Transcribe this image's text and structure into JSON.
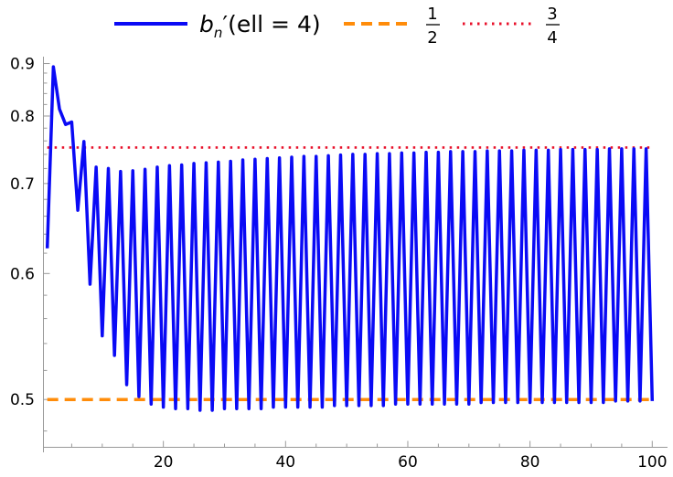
{
  "chart_data": {
    "type": "line",
    "title": "",
    "xlabel": "",
    "ylabel": "",
    "xlim": [
      0.3,
      102.5
    ],
    "ylim": [
      0.47,
      0.915
    ],
    "y_scale": "reciprocal",
    "grid": false,
    "legend_position": "top",
    "x_ticks": [
      20,
      40,
      60,
      80,
      100
    ],
    "y_ticks": [
      0.5,
      0.6,
      0.7,
      0.8,
      0.9
    ],
    "series": [
      {
        "name": "b_n′(ell = 4)",
        "style": "solid",
        "color": "#0a0af5",
        "x": [
          1,
          2,
          3,
          4,
          5,
          6,
          7,
          8,
          9,
          10,
          11,
          12,
          13,
          14,
          15,
          16,
          17,
          18,
          19,
          20,
          21,
          22,
          23,
          24,
          25,
          26,
          27,
          28,
          29,
          30,
          31,
          32,
          33,
          34,
          35,
          36,
          37,
          38,
          39,
          40,
          41,
          42,
          43,
          44,
          45,
          46,
          47,
          48,
          49,
          50,
          51,
          52,
          53,
          54,
          55,
          56,
          57,
          58,
          59,
          60,
          61,
          62,
          63,
          64,
          65,
          66,
          67,
          68,
          69,
          70,
          71,
          72,
          73,
          74,
          75,
          76,
          77,
          78,
          79,
          80,
          81,
          82,
          83,
          84,
          85,
          86,
          87,
          88,
          89,
          90,
          91,
          92,
          93,
          94,
          95,
          96,
          97,
          98,
          99,
          100
        ],
        "y": [
          0.625,
          0.893,
          0.812,
          0.786,
          0.79,
          0.667,
          0.759,
          0.59,
          0.722,
          0.546,
          0.72,
          0.531,
          0.716,
          0.51,
          0.717,
          0.502,
          0.719,
          0.497,
          0.722,
          0.495,
          0.724,
          0.494,
          0.725,
          0.494,
          0.727,
          0.493,
          0.728,
          0.493,
          0.729,
          0.494,
          0.73,
          0.494,
          0.732,
          0.494,
          0.733,
          0.494,
          0.734,
          0.495,
          0.735,
          0.495,
          0.736,
          0.495,
          0.737,
          0.495,
          0.737,
          0.495,
          0.738,
          0.496,
          0.739,
          0.496,
          0.74,
          0.496,
          0.74,
          0.496,
          0.741,
          0.496,
          0.741,
          0.497,
          0.742,
          0.497,
          0.742,
          0.497,
          0.743,
          0.497,
          0.743,
          0.497,
          0.744,
          0.497,
          0.744,
          0.497,
          0.744,
          0.498,
          0.745,
          0.498,
          0.745,
          0.498,
          0.745,
          0.498,
          0.746,
          0.498,
          0.746,
          0.498,
          0.746,
          0.498,
          0.747,
          0.498,
          0.747,
          0.498,
          0.747,
          0.498,
          0.747,
          0.498,
          0.748,
          0.499,
          0.748,
          0.499,
          0.748,
          0.499,
          0.748,
          0.499
        ]
      },
      {
        "name": "1/2",
        "style": "dashed",
        "color": "#ff8c0a",
        "constant": 0.5,
        "x_range": [
          1,
          100
        ]
      },
      {
        "name": "3/4",
        "style": "dotted",
        "color": "#e8102a",
        "constant": 0.75,
        "x_range": [
          1,
          100
        ]
      }
    ]
  },
  "legend": {
    "b_label": "b",
    "n_label": "n",
    "prime": "′",
    "ell_text": "(ell = 4)",
    "half_num": "1",
    "half_den": "2",
    "three_quarter_num": "3",
    "three_quarter_den": "4"
  }
}
